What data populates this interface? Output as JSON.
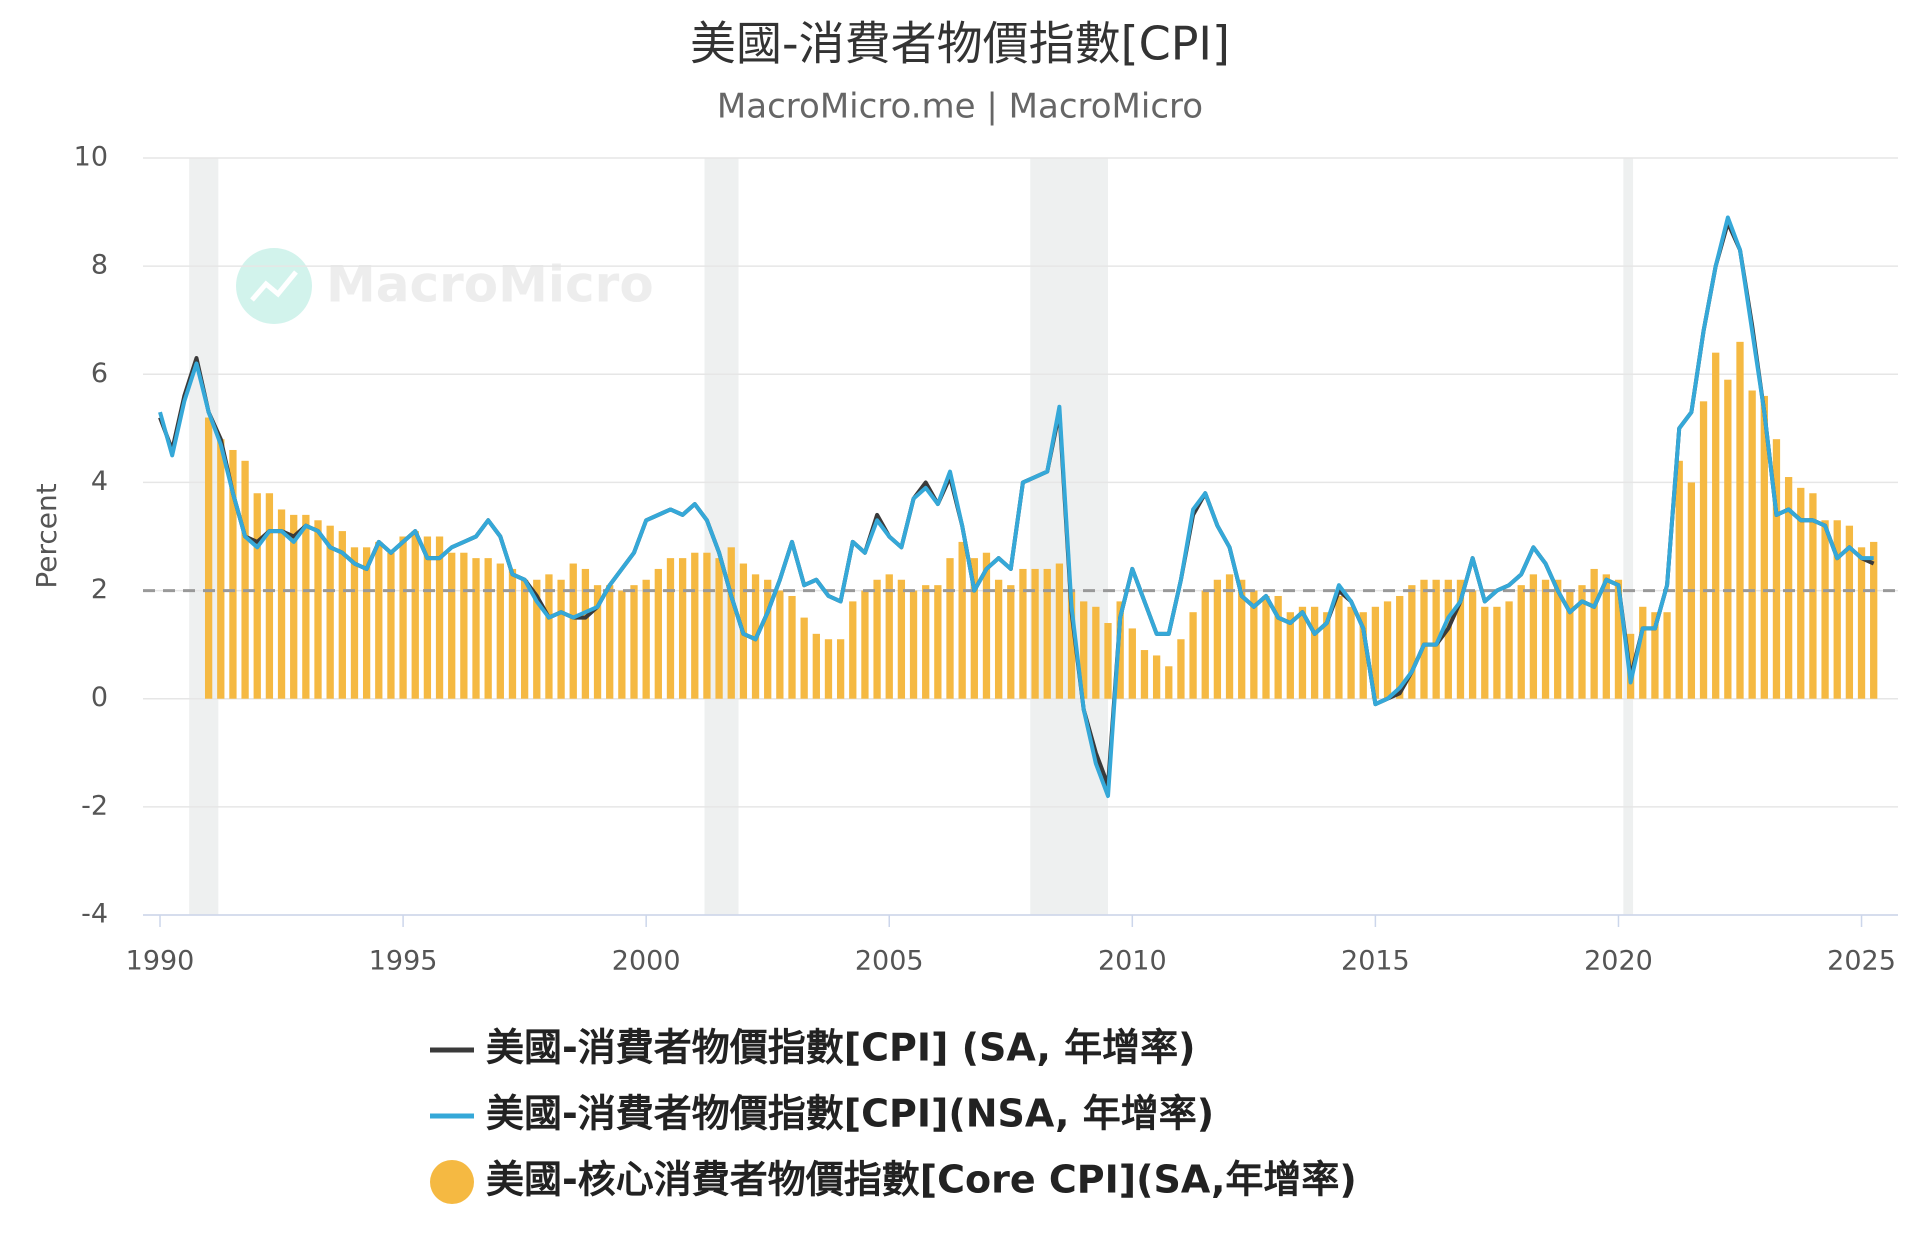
{
  "chart_data": {
    "type": "line",
    "title": "美國-消費者物價指數[CPI]",
    "subtitle": "MacroMicro.me | MacroMicro",
    "watermark": "MacroMicro",
    "y_label": "Percent",
    "xlim": [
      1989.65,
      2025.75
    ],
    "xticks": [
      1990,
      1995,
      2000,
      2005,
      2010,
      2015,
      2020,
      2025
    ],
    "ylim": [
      -4,
      10
    ],
    "yticks": [
      -4,
      -2,
      0,
      2,
      4,
      6,
      8,
      10
    ],
    "grid": true,
    "reference_line": 2,
    "recessions": [
      [
        1990.6,
        1991.2
      ],
      [
        2001.2,
        2001.9
      ],
      [
        2007.9,
        2009.5
      ],
      [
        2020.1,
        2020.3
      ]
    ],
    "x": [
      1990,
      1990.25,
      1990.5,
      1990.75,
      1991,
      1991.25,
      1991.5,
      1991.75,
      1992,
      1992.25,
      1992.5,
      1992.75,
      1993,
      1993.25,
      1993.5,
      1993.75,
      1994,
      1994.25,
      1994.5,
      1994.75,
      1995,
      1995.25,
      1995.5,
      1995.75,
      1996,
      1996.25,
      1996.5,
      1996.75,
      1997,
      1997.25,
      1997.5,
      1997.75,
      1998,
      1998.25,
      1998.5,
      1998.75,
      1999,
      1999.25,
      1999.5,
      1999.75,
      2000,
      2000.25,
      2000.5,
      2000.75,
      2001,
      2001.25,
      2001.5,
      2001.75,
      2002,
      2002.25,
      2002.5,
      2002.75,
      2003,
      2003.25,
      2003.5,
      2003.75,
      2004,
      2004.25,
      2004.5,
      2004.75,
      2005,
      2005.25,
      2005.5,
      2005.75,
      2006,
      2006.25,
      2006.5,
      2006.75,
      2007,
      2007.25,
      2007.5,
      2007.75,
      2008,
      2008.25,
      2008.5,
      2008.75,
      2009,
      2009.25,
      2009.5,
      2009.75,
      2010,
      2010.25,
      2010.5,
      2010.75,
      2011,
      2011.25,
      2011.5,
      2011.75,
      2012,
      2012.25,
      2012.5,
      2012.75,
      2013,
      2013.25,
      2013.5,
      2013.75,
      2014,
      2014.25,
      2014.5,
      2014.75,
      2015,
      2015.25,
      2015.5,
      2015.75,
      2016,
      2016.25,
      2016.5,
      2016.75,
      2017,
      2017.25,
      2017.5,
      2017.75,
      2018,
      2018.25,
      2018.5,
      2018.75,
      2019,
      2019.25,
      2019.5,
      2019.75,
      2020,
      2020.25,
      2020.5,
      2020.75,
      2021,
      2021.25,
      2021.5,
      2021.75,
      2022,
      2022.25,
      2022.5,
      2022.75,
      2023,
      2023.25,
      2023.5,
      2023.75,
      2024,
      2024.25,
      2024.5,
      2024.75,
      2025,
      2025.25
    ],
    "series": [
      {
        "name": "美國-核心消費者物價指數[Core CPI](SA,年增率)",
        "type": "bar",
        "color": "#f5b942",
        "values": [
          null,
          null,
          null,
          null,
          5.2,
          4.8,
          4.6,
          4.4,
          3.8,
          3.8,
          3.5,
          3.4,
          3.4,
          3.3,
          3.2,
          3.1,
          2.8,
          2.8,
          2.9,
          2.7,
          3.0,
          3.1,
          3.0,
          3.0,
          2.7,
          2.7,
          2.6,
          2.6,
          2.5,
          2.4,
          2.2,
          2.2,
          2.3,
          2.2,
          2.5,
          2.4,
          2.1,
          2.1,
          2.0,
          2.1,
          2.2,
          2.4,
          2.6,
          2.6,
          2.7,
          2.7,
          2.6,
          2.8,
          2.5,
          2.3,
          2.2,
          2.0,
          1.9,
          1.5,
          1.2,
          1.1,
          1.1,
          1.8,
          2.0,
          2.2,
          2.3,
          2.2,
          2.0,
          2.1,
          2.1,
          2.6,
          2.9,
          2.6,
          2.7,
          2.2,
          2.1,
          2.4,
          2.4,
          2.4,
          2.5,
          2.0,
          1.8,
          1.7,
          1.4,
          1.8,
          1.3,
          0.9,
          0.8,
          0.6,
          1.1,
          1.6,
          2.0,
          2.2,
          2.3,
          2.2,
          2.0,
          1.9,
          1.9,
          1.6,
          1.7,
          1.7,
          1.6,
          1.9,
          1.7,
          1.6,
          1.7,
          1.8,
          1.9,
          2.1,
          2.2,
          2.2,
          2.2,
          2.2,
          2.0,
          1.7,
          1.7,
          1.8,
          2.1,
          2.3,
          2.2,
          2.2,
          2.0,
          2.1,
          2.4,
          2.3,
          2.2,
          1.2,
          1.7,
          1.6,
          1.6,
          4.4,
          4.0,
          5.5,
          6.4,
          5.9,
          6.6,
          5.7,
          5.6,
          4.8,
          4.1,
          3.9,
          3.8,
          3.3,
          3.3,
          3.2,
          2.8,
          2.9
        ]
      },
      {
        "name": "美國-消費者物價指數[CPI] (SA, 年增率)",
        "type": "line",
        "color": "#3a3a3a",
        "values": [
          5.2,
          4.6,
          5.6,
          6.3,
          5.3,
          4.8,
          3.8,
          3.0,
          2.9,
          3.1,
          3.1,
          3.0,
          3.2,
          3.1,
          2.8,
          2.7,
          2.5,
          2.4,
          2.9,
          2.7,
          2.9,
          3.1,
          2.6,
          2.6,
          2.8,
          2.9,
          3.0,
          3.3,
          3.0,
          2.3,
          2.2,
          1.9,
          1.5,
          1.6,
          1.5,
          1.5,
          1.7,
          2.1,
          2.4,
          2.7,
          3.3,
          3.4,
          3.5,
          3.4,
          3.6,
          3.3,
          2.7,
          1.9,
          1.2,
          1.1,
          1.6,
          2.2,
          2.9,
          2.1,
          2.2,
          1.9,
          1.8,
          2.9,
          2.7,
          3.4,
          3.0,
          2.8,
          3.7,
          4.0,
          3.6,
          4.1,
          3.2,
          2.0,
          2.4,
          2.6,
          2.4,
          4.0,
          4.1,
          4.2,
          5.3,
          1.6,
          -0.2,
          -1.0,
          -1.6,
          1.5,
          2.4,
          1.8,
          1.2,
          1.2,
          2.2,
          3.4,
          3.8,
          3.2,
          2.8,
          1.9,
          1.7,
          1.9,
          1.5,
          1.4,
          1.6,
          1.2,
          1.4,
          2.0,
          1.8,
          1.3,
          -0.1,
          0.0,
          0.1,
          0.5,
          1.0,
          1.0,
          1.3,
          1.8,
          2.6,
          1.8,
          2.0,
          2.1,
          2.3,
          2.8,
          2.5,
          2.0,
          1.6,
          1.8,
          1.7,
          2.2,
          2.1,
          0.4,
          1.3,
          1.3,
          2.1,
          5.0,
          5.3,
          6.8,
          8.0,
          8.8,
          8.3,
          6.9,
          5.3,
          3.4,
          3.5,
          3.3,
          3.3,
          3.2,
          2.6,
          2.8,
          2.6,
          2.5
        ]
      },
      {
        "name": "美國-消費者物價指數[CPI](NSA, 年增率)",
        "type": "line",
        "color": "#35a8d8",
        "values": [
          5.3,
          4.5,
          5.5,
          6.2,
          5.3,
          4.7,
          3.8,
          3.0,
          2.8,
          3.1,
          3.1,
          2.9,
          3.2,
          3.1,
          2.8,
          2.7,
          2.5,
          2.4,
          2.9,
          2.7,
          2.9,
          3.1,
          2.6,
          2.6,
          2.8,
          2.9,
          3.0,
          3.3,
          3.0,
          2.3,
          2.2,
          1.8,
          1.5,
          1.6,
          1.5,
          1.6,
          1.7,
          2.1,
          2.4,
          2.7,
          3.3,
          3.4,
          3.5,
          3.4,
          3.6,
          3.3,
          2.7,
          1.9,
          1.2,
          1.1,
          1.6,
          2.2,
          2.9,
          2.1,
          2.2,
          1.9,
          1.8,
          2.9,
          2.7,
          3.3,
          3.0,
          2.8,
          3.7,
          3.9,
          3.6,
          4.2,
          3.2,
          2.0,
          2.4,
          2.6,
          2.4,
          4.0,
          4.1,
          4.2,
          5.4,
          1.7,
          -0.2,
          -1.2,
          -1.8,
          1.5,
          2.4,
          1.8,
          1.2,
          1.2,
          2.2,
          3.5,
          3.8,
          3.2,
          2.8,
          1.9,
          1.7,
          1.9,
          1.5,
          1.4,
          1.6,
          1.2,
          1.4,
          2.1,
          1.8,
          1.3,
          -0.1,
          0.0,
          0.2,
          0.5,
          1.0,
          1.0,
          1.5,
          1.8,
          2.6,
          1.8,
          2.0,
          2.1,
          2.3,
          2.8,
          2.5,
          2.0,
          1.6,
          1.8,
          1.7,
          2.2,
          2.1,
          0.3,
          1.3,
          1.3,
          2.1,
          5.0,
          5.3,
          6.8,
          8.0,
          8.9,
          8.3,
          6.8,
          5.3,
          3.4,
          3.5,
          3.3,
          3.3,
          3.2,
          2.6,
          2.8,
          2.6,
          2.6
        ]
      }
    ]
  }
}
